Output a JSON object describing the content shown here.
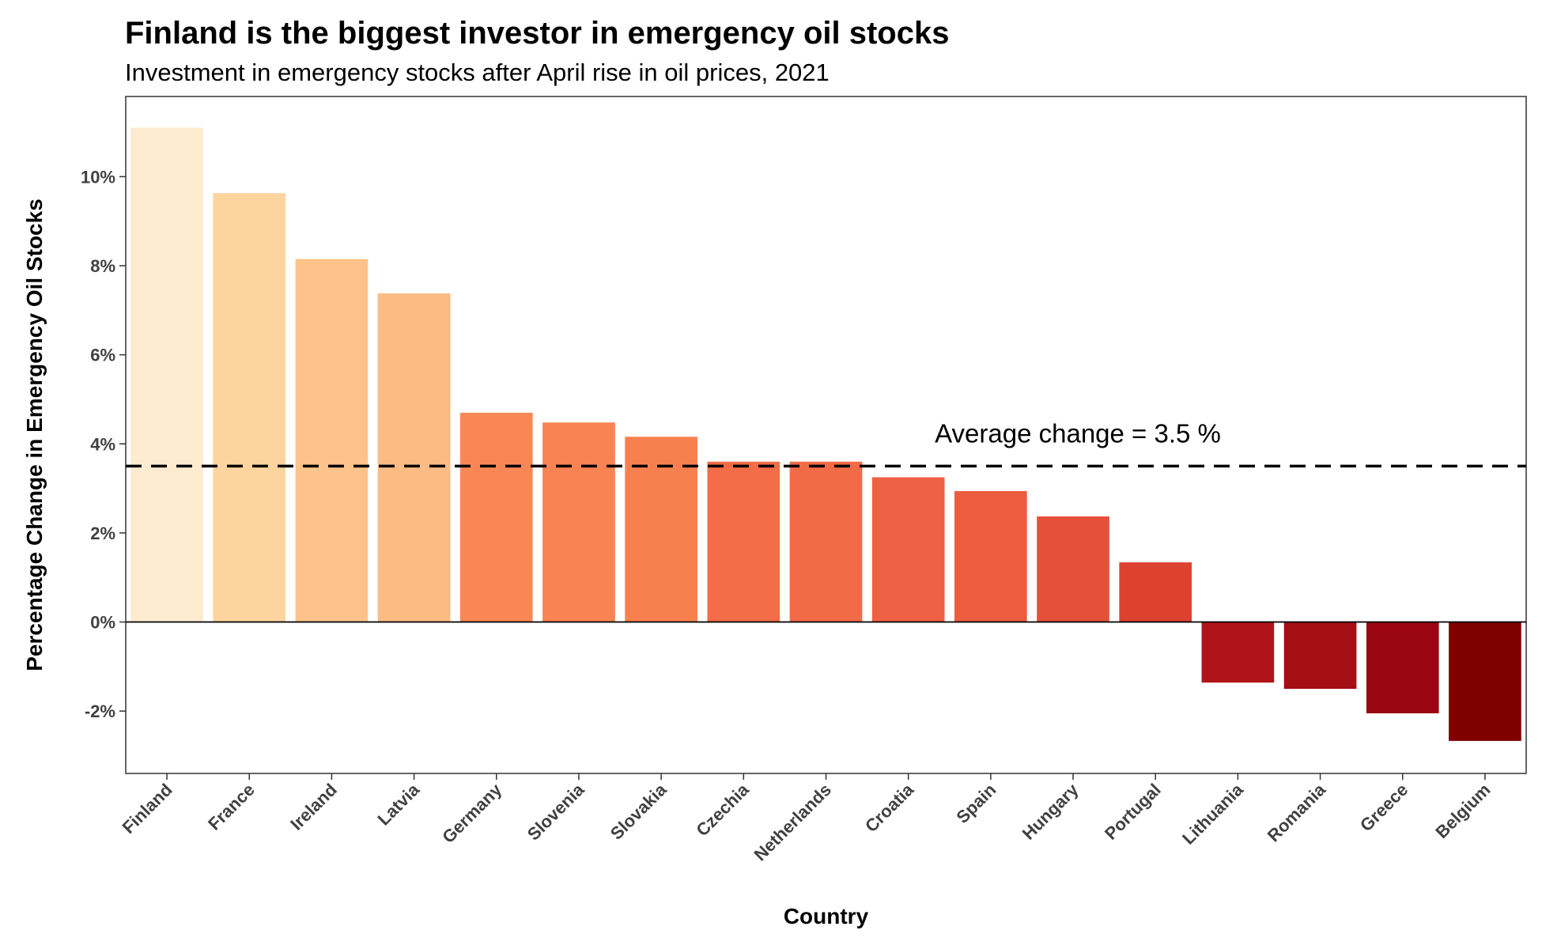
{
  "chart_data": {
    "type": "bar",
    "title": "Finland is the biggest investor in emergency oil stocks",
    "subtitle": "Investment in emergency stocks after April rise in oil prices, 2021",
    "xlabel": "Country",
    "ylabel": "Percentage Change in Emergency Oil Stocks",
    "categories": [
      "Finland",
      "France",
      "Ireland",
      "Latvia",
      "Germany",
      "Slovenia",
      "Slovakia",
      "Czechia",
      "Netherlands",
      "Croatia",
      "Spain",
      "Hungary",
      "Portugal",
      "Lithuania",
      "Romania",
      "Greece",
      "Belgium"
    ],
    "values": [
      11.1,
      9.63,
      8.15,
      7.38,
      4.7,
      4.48,
      4.16,
      3.6,
      3.6,
      3.25,
      2.94,
      2.37,
      1.34,
      -1.36,
      -1.5,
      -2.05,
      -2.67
    ],
    "bar_colors": [
      "#fdebd0",
      "#fdd49e",
      "#fdc38a",
      "#fdbb84",
      "#f98755",
      "#f98352",
      "#f8804f",
      "#f26d48",
      "#f26b47",
      "#ee6043",
      "#ec5c3f",
      "#e6503a",
      "#dd4231",
      "#b0141a",
      "#a60e15",
      "#990510",
      "#800000"
    ],
    "ylim": [
      -3.4,
      11.8
    ],
    "yticks": [
      -2,
      0,
      2,
      4,
      6,
      8,
      10
    ],
    "ytick_labels": [
      "-2%",
      "0%",
      "2%",
      "4%",
      "6%",
      "8%",
      "10%"
    ],
    "reference_line": {
      "value": 3.5,
      "style": "dashed",
      "label": "Average change = 3.5 %"
    },
    "zero_line": true,
    "grid": false,
    "legend": "none"
  }
}
